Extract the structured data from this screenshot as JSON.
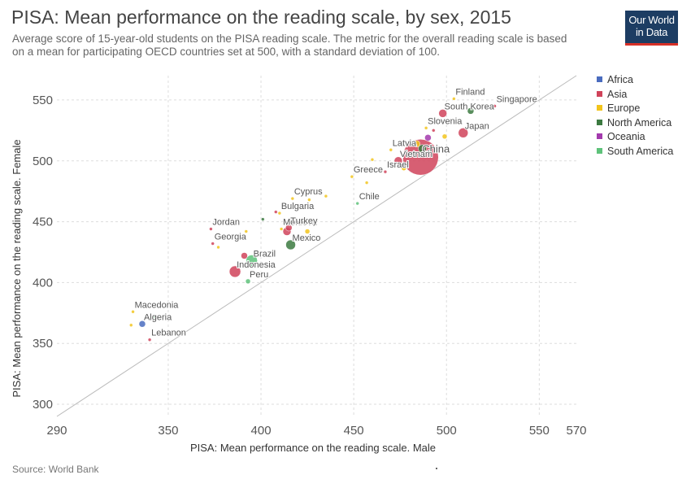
{
  "header": {
    "title": "PISA: Mean performance on the reading scale, by sex, 2015",
    "subtitle": "Average score of 15-year-old students on the PISA reading scale. The metric for the overall reading scale is based on a mean for participating OECD countries set at 500, with a standard deviation of 100.",
    "logo_line1": "Our World",
    "logo_line2": "in Data",
    "logo_color": "#1d3d63",
    "logo_accent": "#d73027"
  },
  "footer": {
    "source": "Source: World Bank"
  },
  "legend": [
    {
      "name": "Africa",
      "color": "#4a6cbf"
    },
    {
      "name": "Asia",
      "color": "#d0435a"
    },
    {
      "name": "Europe",
      "color": "#f2c41c"
    },
    {
      "name": "North America",
      "color": "#3c7a41"
    },
    {
      "name": "Oceania",
      "color": "#a33aad"
    },
    {
      "name": "South America",
      "color": "#5ec27a"
    }
  ],
  "chart_data": {
    "type": "scatter",
    "title": "PISA: Mean performance on the reading scale, by sex, 2015",
    "xlabel": "PISA: Mean performance on the reading scale. Male",
    "ylabel": "PISA: Mean performance on the reading scale. Female",
    "xlim": [
      290,
      570
    ],
    "ylim": [
      290,
      570
    ],
    "x_ticks": [
      290,
      350,
      400,
      450,
      500,
      550,
      570
    ],
    "y_ticks": [
      300,
      350,
      400,
      450,
      500,
      550
    ],
    "grid": true,
    "diagonal_reference_line": true,
    "legend_position": "right",
    "points": [
      {
        "label": "Finland",
        "region": "Europe",
        "x": 504,
        "y": 551,
        "size": 2
      },
      {
        "label": "Singapore",
        "region": "Asia",
        "x": 526,
        "y": 545,
        "size": 2
      },
      {
        "label": "South Korea",
        "region": "Asia",
        "x": 498,
        "y": 539,
        "size": 5
      },
      {
        "label": "",
        "region": "North America",
        "x": 513,
        "y": 541,
        "size": 4
      },
      {
        "label": "",
        "region": "Europe",
        "x": 506,
        "y": 533,
        "size": 2
      },
      {
        "label": "Japan",
        "region": "Asia",
        "x": 509,
        "y": 523,
        "size": 6
      },
      {
        "label": "Slovenia",
        "region": "Europe",
        "x": 489,
        "y": 527,
        "size": 2
      },
      {
        "label": "",
        "region": "Asia",
        "x": 493,
        "y": 525,
        "size": 2
      },
      {
        "label": "China",
        "region": "Asia",
        "x": 486,
        "y": 503,
        "size": 22
      },
      {
        "label": "",
        "region": "Oceania",
        "x": 490,
        "y": 519,
        "size": 4
      },
      {
        "label": "",
        "region": "Europe",
        "x": 499,
        "y": 520,
        "size": 3
      },
      {
        "label": "",
        "region": "Europe",
        "x": 484,
        "y": 514,
        "size": 4
      },
      {
        "label": "",
        "region": "North America",
        "x": 487,
        "y": 510,
        "size": 5
      },
      {
        "label": "Vietnam",
        "region": "Asia",
        "x": 474,
        "y": 500,
        "size": 5
      },
      {
        "label": "Latvia",
        "region": "Europe",
        "x": 470,
        "y": 509,
        "size": 2
      },
      {
        "label": "Israel",
        "region": "Asia",
        "x": 467,
        "y": 491,
        "size": 2
      },
      {
        "label": "",
        "region": "Europe",
        "x": 477,
        "y": 494,
        "size": 3
      },
      {
        "label": "",
        "region": "Europe",
        "x": 460,
        "y": 501,
        "size": 2
      },
      {
        "label": "Greece",
        "region": "Europe",
        "x": 449,
        "y": 487,
        "size": 2
      },
      {
        "label": "",
        "region": "Europe",
        "x": 457,
        "y": 482,
        "size": 2
      },
      {
        "label": "Chile",
        "region": "South America",
        "x": 452,
        "y": 465,
        "size": 2
      },
      {
        "label": "Cyprus",
        "region": "Europe",
        "x": 417,
        "y": 469,
        "size": 2
      },
      {
        "label": "",
        "region": "Europe",
        "x": 435,
        "y": 471,
        "size": 2
      },
      {
        "label": "",
        "region": "Europe",
        "x": 426,
        "y": 468,
        "size": 2
      },
      {
        "label": "Bulgaria",
        "region": "Europe",
        "x": 410,
        "y": 457,
        "size": 2
      },
      {
        "label": "",
        "region": "Asia",
        "x": 408,
        "y": 458,
        "size": 2
      },
      {
        "label": "",
        "region": "North America",
        "x": 401,
        "y": 452,
        "size": 2
      },
      {
        "label": "Jordan",
        "region": "Asia",
        "x": 373,
        "y": 444,
        "size": 2
      },
      {
        "label": "Moldova",
        "region": "Europe",
        "x": 411,
        "y": 444,
        "size": 2
      },
      {
        "label": "",
        "region": "Europe",
        "x": 392,
        "y": 442,
        "size": 2
      },
      {
        "label": "Turkey",
        "region": "Asia",
        "x": 415,
        "y": 445,
        "size": 4
      },
      {
        "label": "",
        "region": "Asia",
        "x": 414,
        "y": 442,
        "size": 5
      },
      {
        "label": "",
        "region": "Europe",
        "x": 425,
        "y": 442,
        "size": 3
      },
      {
        "label": "Mexico",
        "region": "North America",
        "x": 416,
        "y": 431,
        "size": 6
      },
      {
        "label": "",
        "region": "North America",
        "x": 420,
        "y": 435,
        "size": 2
      },
      {
        "label": "Georgia",
        "region": "Asia",
        "x": 374,
        "y": 432,
        "size": 2
      },
      {
        "label": "",
        "region": "Europe",
        "x": 377,
        "y": 429,
        "size": 2
      },
      {
        "label": "Brazil",
        "region": "South America",
        "x": 395,
        "y": 418,
        "size": 7
      },
      {
        "label": "Indonesia",
        "region": "Asia",
        "x": 386,
        "y": 409,
        "size": 7
      },
      {
        "label": "",
        "region": "Asia",
        "x": 391,
        "y": 422,
        "size": 4
      },
      {
        "label": "Peru",
        "region": "South America",
        "x": 393,
        "y": 401,
        "size": 3
      },
      {
        "label": "Macedonia",
        "region": "Europe",
        "x": 331,
        "y": 376,
        "size": 2
      },
      {
        "label": "Algeria",
        "region": "Africa",
        "x": 336,
        "y": 366,
        "size": 4
      },
      {
        "label": "",
        "region": "South America",
        "x": 342,
        "y": 372,
        "size": 2
      },
      {
        "label": "",
        "region": "North America",
        "x": 347,
        "y": 372,
        "size": 2
      },
      {
        "label": "",
        "region": "Europe",
        "x": 330,
        "y": 365,
        "size": 2
      },
      {
        "label": "Lebanon",
        "region": "Asia",
        "x": 340,
        "y": 353,
        "size": 2
      }
    ]
  }
}
